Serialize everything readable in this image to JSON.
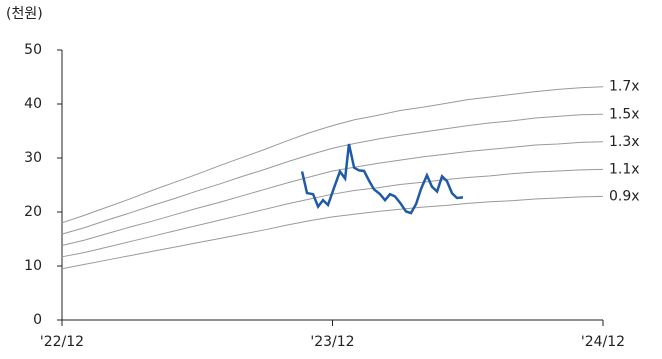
{
  "chart_data": {
    "type": "line",
    "y_label": "(천원)",
    "xlim": [
      0,
      24
    ],
    "ylim": [
      0,
      50
    ],
    "xticks": [
      {
        "value": 0,
        "label": "'22/12"
      },
      {
        "value": 12,
        "label": "'23/12"
      },
      {
        "value": 24,
        "label": "'24/12"
      }
    ],
    "yticks": [
      0,
      10,
      20,
      30,
      40,
      50
    ],
    "series": [
      {
        "name": "1.7x",
        "color": "#9a9a9a",
        "x": [
          0,
          1,
          2,
          3,
          4,
          5,
          6,
          7,
          8,
          9,
          10,
          11,
          12,
          13,
          14,
          15,
          16,
          17,
          18,
          19,
          20,
          21,
          22,
          23,
          24
        ],
        "values": [
          18.0,
          19.4,
          20.9,
          22.4,
          24.0,
          25.5,
          27.0,
          28.6,
          30.1,
          31.6,
          33.2,
          34.7,
          36.0,
          37.1,
          37.9,
          38.8,
          39.4,
          40.1,
          40.8,
          41.3,
          41.8,
          42.3,
          42.7,
          43.0,
          43.2
        ]
      },
      {
        "name": "1.5x",
        "color": "#9a9a9a",
        "x": [
          0,
          1,
          2,
          3,
          4,
          5,
          6,
          7,
          8,
          9,
          10,
          11,
          12,
          13,
          14,
          15,
          16,
          17,
          18,
          19,
          20,
          21,
          22,
          23,
          24
        ],
        "values": [
          15.9,
          17.1,
          18.5,
          19.8,
          21.2,
          22.5,
          23.9,
          25.2,
          26.6,
          27.9,
          29.3,
          30.6,
          31.8,
          32.7,
          33.5,
          34.2,
          34.8,
          35.4,
          36.0,
          36.5,
          36.9,
          37.4,
          37.7,
          38.0,
          38.1
        ]
      },
      {
        "name": "1.3x",
        "color": "#9a9a9a",
        "x": [
          0,
          1,
          2,
          3,
          4,
          5,
          6,
          7,
          8,
          9,
          10,
          11,
          12,
          13,
          14,
          15,
          16,
          17,
          18,
          19,
          20,
          21,
          22,
          23,
          24
        ],
        "values": [
          13.8,
          14.8,
          16.0,
          17.2,
          18.3,
          19.5,
          20.7,
          21.8,
          23.0,
          24.2,
          25.4,
          26.5,
          27.6,
          28.3,
          29.0,
          29.6,
          30.2,
          30.7,
          31.2,
          31.6,
          32.0,
          32.4,
          32.6,
          32.9,
          33.0
        ]
      },
      {
        "name": "1.1x",
        "color": "#9a9a9a",
        "x": [
          0,
          1,
          2,
          3,
          4,
          5,
          6,
          7,
          8,
          9,
          10,
          11,
          12,
          13,
          14,
          15,
          16,
          17,
          18,
          19,
          20,
          21,
          22,
          23,
          24
        ],
        "values": [
          11.7,
          12.5,
          13.5,
          14.5,
          15.5,
          16.5,
          17.5,
          18.5,
          19.5,
          20.5,
          21.5,
          22.4,
          23.3,
          24.0,
          24.5,
          25.1,
          25.5,
          26.0,
          26.4,
          26.7,
          27.1,
          27.4,
          27.6,
          27.8,
          27.9
        ]
      },
      {
        "name": "0.9x",
        "color": "#9a9a9a",
        "x": [
          0,
          1,
          2,
          3,
          4,
          5,
          6,
          7,
          8,
          9,
          10,
          11,
          12,
          13,
          14,
          15,
          16,
          17,
          18,
          19,
          20,
          21,
          22,
          23,
          24
        ],
        "values": [
          9.5,
          10.3,
          11.1,
          11.9,
          12.7,
          13.5,
          14.3,
          15.1,
          15.9,
          16.7,
          17.6,
          18.4,
          19.1,
          19.6,
          20.1,
          20.5,
          20.9,
          21.2,
          21.6,
          21.9,
          22.1,
          22.4,
          22.6,
          22.8,
          22.9
        ]
      },
      {
        "color": "#1f5aa6",
        "x": [
          10.65,
          10.87,
          11.14,
          11.36,
          11.58,
          11.8,
          12.07,
          12.33,
          12.56,
          12.73,
          12.96,
          13.18,
          13.4,
          13.62,
          13.84,
          14.11,
          14.33,
          14.55,
          14.77,
          15,
          15.26,
          15.48,
          15.71,
          15.93,
          16.19,
          16.41,
          16.64,
          16.86,
          17.08,
          17.3,
          17.52,
          17.79
        ],
        "values": [
          27.5,
          23.5,
          23.3,
          21.0,
          22.2,
          21.3,
          24.5,
          27.5,
          26.2,
          32.6,
          28.2,
          27.7,
          27.6,
          25.8,
          24.2,
          23.3,
          22.2,
          23.3,
          22.9,
          21.7,
          20.1,
          19.8,
          21.5,
          24.3,
          26.8,
          24.7,
          23.8,
          26.6,
          25.7,
          23.5,
          22.6,
          22.7
        ]
      }
    ]
  }
}
